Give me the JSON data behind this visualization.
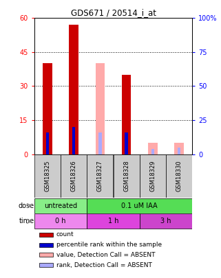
{
  "title": "GDS671 / 20514_i_at",
  "samples": [
    "GSM18325",
    "GSM18326",
    "GSM18327",
    "GSM18328",
    "GSM18329",
    "GSM18330"
  ],
  "count_values": [
    40,
    57,
    0,
    35,
    0,
    0
  ],
  "rank_values": [
    16,
    20,
    0,
    16,
    0,
    0
  ],
  "absent_value_values": [
    0,
    0,
    40,
    0,
    5,
    5
  ],
  "absent_rank_values": [
    0,
    0,
    16,
    0,
    4,
    5
  ],
  "ylim_left": [
    0,
    60
  ],
  "ylim_right": [
    0,
    100
  ],
  "yticks_left": [
    0,
    15,
    30,
    45,
    60
  ],
  "yticks_right": [
    0,
    25,
    50,
    75,
    100
  ],
  "ytick_labels_left": [
    "0",
    "15",
    "30",
    "45",
    "60"
  ],
  "ytick_labels_right": [
    "0",
    "25",
    "50",
    "75",
    "100%"
  ],
  "color_count": "#cc0000",
  "color_rank": "#0000cc",
  "color_absent_value": "#ffaaaa",
  "color_absent_rank": "#aaaaff",
  "dose_color_untreated": "#88ee88",
  "dose_color_treated": "#55dd55",
  "time_color_0h": "#ee88ee",
  "time_color_1h": "#dd44dd",
  "time_color_3h": "#cc44cc",
  "bar_width": 0.35,
  "rank_bar_width": 0.12,
  "sample_bg": "#cccccc",
  "title_fontsize": 8.5,
  "tick_fontsize": 7,
  "label_fontsize": 7,
  "legend_fontsize": 6.5
}
